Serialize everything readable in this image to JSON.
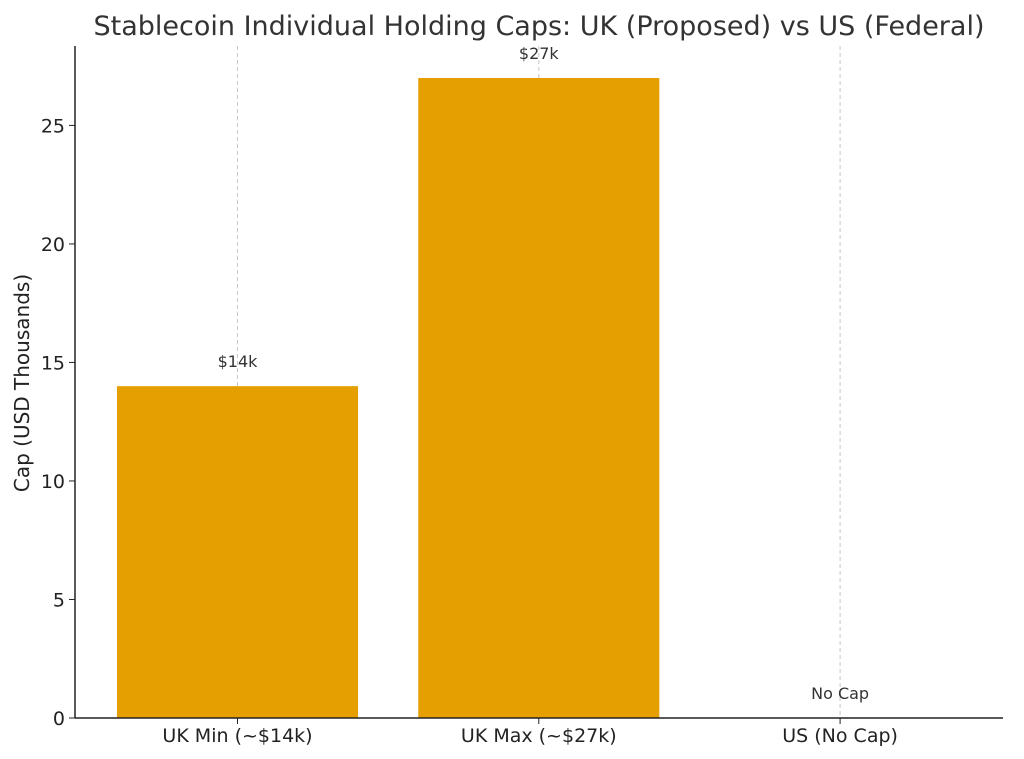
{
  "chart_data": {
    "type": "bar",
    "title": "Stablecoin Individual Holding Caps: UK (Proposed) vs US (Federal)",
    "ylabel": "Cap (USD Thousands)",
    "categories": [
      "UK Min (~$14k)",
      "UK Max (~$27k)",
      "US (No Cap)"
    ],
    "values": [
      14,
      27,
      0
    ],
    "data_labels": [
      "$14k",
      "$27k",
      "No Cap"
    ],
    "ylim": [
      0,
      28.35
    ],
    "yticks": [
      0,
      5,
      10,
      15,
      20,
      25
    ],
    "grid": "vertical dashed at categories",
    "bar_color": "#E69F00"
  }
}
